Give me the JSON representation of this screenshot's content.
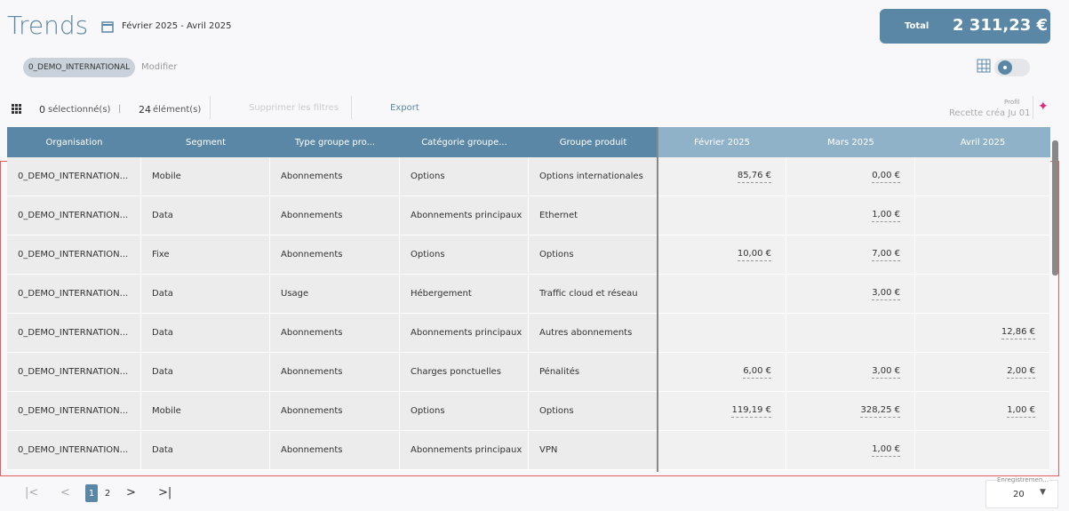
{
  "header": {
    "title": "Trends",
    "date_range": "Février 2025 - Avril 2025",
    "total_label": "Total",
    "total_value": "2 311,23 €"
  },
  "filter": {
    "chip": "0_DEMO_INTERNATIONAL",
    "edit": "Modifier"
  },
  "toolbar": {
    "selected_count": "0",
    "selected_label": "sélectionné(s)",
    "separator": "|",
    "items_count": "24",
    "items_label": "élément(s)",
    "clear_filters": "Supprimer les filtres",
    "export": "Export",
    "profile_label": "Profil",
    "profile_value": "Recette créa Ju 01"
  },
  "table": {
    "columns": [
      "Organisation",
      "Segment",
      "Type groupe pro...",
      "Catégorie groupe...",
      "Groupe produit",
      "Février 2025",
      "Mars 2025",
      "Avril 2025"
    ],
    "rows": [
      [
        "0_DEMO_INTERNATION...",
        "Mobile",
        "Abonnements",
        "Options",
        "Options internationales",
        "85,76 €",
        "0,00 €",
        null
      ],
      [
        "0_DEMO_INTERNATION...",
        "Data",
        "Abonnements",
        "Abonnements principaux",
        "Ethernet",
        null,
        "1,00 €",
        null
      ],
      [
        "0_DEMO_INTERNATION...",
        "Fixe",
        "Abonnements",
        "Options",
        "Options",
        "10,00 €",
        "7,00 €",
        null
      ],
      [
        "0_DEMO_INTERNATION...",
        "Data",
        "Usage",
        "Hébergement",
        "Traffic cloud et réseau",
        null,
        "3,00 €",
        null
      ],
      [
        "0_DEMO_INTERNATION...",
        "Data",
        "Abonnements",
        "Abonnements principaux",
        "Autres abonnements",
        null,
        null,
        "12,86 €"
      ],
      [
        "0_DEMO_INTERNATION...",
        "Data",
        "Abonnements",
        "Charges ponctuelles",
        "Pénalités",
        "6,00 €",
        "3,00 €",
        "2,00 €"
      ],
      [
        "0_DEMO_INTERNATION...",
        "Mobile",
        "Abonnements",
        "Options",
        "Options",
        "119,19 €",
        "328,25 €",
        "1,00 €"
      ],
      [
        "0_DEMO_INTERNATION...",
        "Data",
        "Abonnements",
        "Abonnements principaux",
        "VPN",
        null,
        "1,00 €",
        null
      ]
    ]
  },
  "pagination": {
    "pages": [
      "1",
      "2"
    ],
    "page_size_label": "Enregistremen...",
    "page_size": "20"
  }
}
